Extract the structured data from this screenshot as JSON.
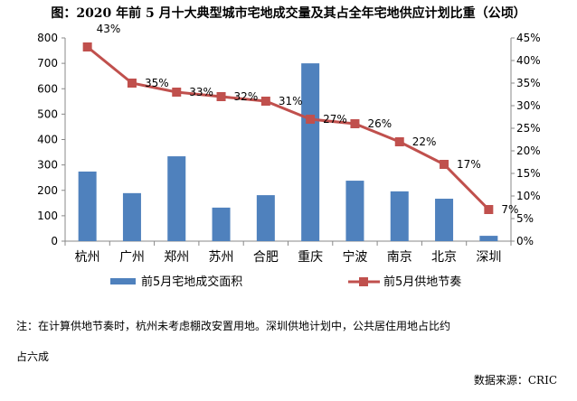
{
  "chart_data": {
    "type": "bar+line",
    "title": "图：2020 年前 5 月十大典型城市宅地成交量及其占全年宅地供应计划比重（公顷）",
    "categories": [
      "杭州",
      "广州",
      "郑州",
      "苏州",
      "合肥",
      "重庆",
      "宁波",
      "南京",
      "北京",
      "深圳"
    ],
    "series": [
      {
        "name": "前5月宅地成交面积",
        "type": "bar",
        "axis": "left",
        "color": "#4f81bd",
        "values": [
          274,
          189,
          334,
          132,
          181,
          700,
          238,
          196,
          167,
          21
        ]
      },
      {
        "name": "前5月供地节奏",
        "type": "line",
        "axis": "right",
        "color": "#c0504d",
        "values": [
          43,
          35,
          33,
          32,
          31,
          27,
          26,
          22,
          17,
          7
        ],
        "labels": [
          "43%",
          "35%",
          "33%",
          "32%",
          "31%",
          "27%",
          "26%",
          "22%",
          "17%",
          "7%"
        ]
      }
    ],
    "y_left": {
      "min": 0,
      "max": 800,
      "ticks": [
        "0",
        "100",
        "200",
        "300",
        "400",
        "500",
        "600",
        "700",
        "800"
      ]
    },
    "y_right": {
      "min": 0,
      "max": 45,
      "ticks": [
        "0%",
        "5%",
        "10%",
        "15%",
        "20%",
        "25%",
        "30%",
        "35%",
        "40%",
        "45%"
      ]
    },
    "grid": false,
    "legend": "bottom"
  },
  "notes": {
    "line1": "注：在计算供地节奏时，杭州未考虑棚改安置用地。深圳供地计划中，公共居住用地占比约",
    "line2": "占六成",
    "source": "数据来源：CRIC"
  }
}
